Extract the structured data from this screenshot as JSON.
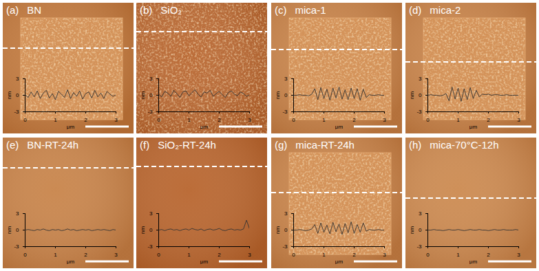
{
  "chart_data": [
    {
      "type": "line",
      "annotations": [
        "(a)"
      ],
      "title": "BN",
      "xlabel": "μm",
      "ylabel": "nm",
      "color": "#333333",
      "xlim": [
        0,
        3
      ],
      "xticks": [
        0,
        1,
        2,
        3
      ],
      "ylim": [
        -3,
        3
      ],
      "yticks": [
        -3,
        0,
        3
      ],
      "x": [
        0,
        0.1,
        0.2,
        0.3,
        0.4,
        0.5,
        0.6,
        0.7,
        0.8,
        0.9,
        1.0,
        1.1,
        1.2,
        1.3,
        1.4,
        1.5,
        1.6,
        1.7,
        1.8,
        1.9,
        2.0,
        2.1,
        2.2,
        2.3,
        2.4,
        2.5,
        2.6,
        2.7,
        2.8,
        2.9,
        3.0
      ],
      "values": [
        0.1,
        -0.4,
        0.6,
        -0.3,
        0.8,
        -0.6,
        0.4,
        0.9,
        -0.5,
        0.3,
        -0.8,
        0.7,
        0.2,
        -0.4,
        1.0,
        -0.6,
        0.5,
        -0.2,
        0.8,
        -0.7,
        0.3,
        0.6,
        -0.5,
        0.9,
        -0.3,
        0.4,
        -0.6,
        0.7,
        0.2,
        -0.2,
        0.1
      ]
    },
    {
      "type": "line",
      "annotations": [
        "(b)"
      ],
      "title": "SiO₂",
      "xlabel": "μm",
      "ylabel": "nm",
      "color": "#333333",
      "xlim": [
        0,
        3
      ],
      "xticks": [
        0,
        1,
        2,
        3
      ],
      "ylim": [
        -3,
        3
      ],
      "yticks": [
        -3,
        0,
        3
      ],
      "x": [
        0,
        0.1,
        0.2,
        0.3,
        0.4,
        0.5,
        0.6,
        0.7,
        0.8,
        0.9,
        1.0,
        1.1,
        1.2,
        1.3,
        1.4,
        1.5,
        1.6,
        1.7,
        1.8,
        1.9,
        2.0,
        2.1,
        2.2,
        2.3,
        2.4,
        2.5,
        2.6,
        2.7,
        2.8,
        2.9,
        3.0
      ],
      "values": [
        0.2,
        -0.3,
        0.7,
        0.4,
        -0.2,
        0.9,
        0.3,
        -0.4,
        0.6,
        0.8,
        -0.1,
        0.5,
        1.0,
        0.2,
        -0.3,
        0.6,
        0.4,
        0.9,
        -0.2,
        0.3,
        0.7,
        0.1,
        -0.4,
        0.5,
        0.8,
        0.2,
        -0.1,
        0.6,
        0.3,
        -0.2,
        0.1
      ]
    },
    {
      "type": "line",
      "annotations": [
        "(c)"
      ],
      "title": "mica-1",
      "xlabel": "μm",
      "ylabel": "nm",
      "color": "#333333",
      "xlim": [
        0,
        3
      ],
      "xticks": [
        0,
        1,
        2,
        3
      ],
      "ylim": [
        -3,
        3
      ],
      "yticks": [
        -3,
        0,
        3
      ],
      "x": [
        0,
        0.1,
        0.2,
        0.3,
        0.4,
        0.5,
        0.6,
        0.7,
        0.8,
        0.9,
        1.0,
        1.1,
        1.2,
        1.3,
        1.4,
        1.5,
        1.6,
        1.7,
        1.8,
        1.9,
        2.0,
        2.1,
        2.2,
        2.3,
        2.4,
        2.5,
        2.6,
        2.7,
        2.8,
        2.9,
        3.0
      ],
      "values": [
        0,
        0,
        0.1,
        0,
        0,
        -0.1,
        0.2,
        1.2,
        -0.8,
        1.4,
        -0.6,
        1.1,
        -0.9,
        1.3,
        -0.5,
        1.5,
        -0.7,
        1.0,
        -0.8,
        1.3,
        -0.6,
        1.2,
        -0.9,
        1.1,
        -0.4,
        0.1,
        0,
        0,
        0.1,
        0,
        0
      ]
    },
    {
      "type": "line",
      "annotations": [
        "(d)"
      ],
      "title": "mica-2",
      "xlabel": "μm",
      "ylabel": "nm",
      "color": "#333333",
      "xlim": [
        0,
        3
      ],
      "xticks": [
        0,
        1,
        2,
        3
      ],
      "ylim": [
        -3,
        3
      ],
      "yticks": [
        -3,
        0,
        3
      ],
      "x": [
        0,
        0.1,
        0.2,
        0.3,
        0.4,
        0.5,
        0.6,
        0.7,
        0.8,
        0.9,
        1.0,
        1.1,
        1.2,
        1.3,
        1.4,
        1.5,
        1.6,
        1.7,
        1.8,
        1.9,
        2.0,
        2.1,
        2.2,
        2.3,
        2.4,
        2.5,
        2.6,
        2.7,
        2.8,
        2.9,
        3.0
      ],
      "values": [
        0,
        0.1,
        0,
        0,
        -0.1,
        0,
        0.3,
        -1.0,
        1.5,
        -0.7,
        1.3,
        -1.1,
        1.2,
        -0.8,
        1.4,
        -0.6,
        0.9,
        -0.3,
        0.2,
        0.1,
        0.2,
        0,
        0.1,
        0.1,
        0,
        0,
        0.1,
        0,
        0,
        0,
        0
      ]
    },
    {
      "type": "line",
      "annotations": [
        "(e)"
      ],
      "title": "BN-RT-24h",
      "xlabel": "μm",
      "ylabel": "nm",
      "color": "#333333",
      "xlim": [
        0,
        3
      ],
      "xticks": [
        0,
        1,
        2,
        3
      ],
      "ylim": [
        -3,
        3
      ],
      "yticks": [
        -3,
        0,
        3
      ],
      "x": [
        0,
        0.1,
        0.2,
        0.3,
        0.4,
        0.5,
        0.6,
        0.7,
        0.8,
        0.9,
        1.0,
        1.1,
        1.2,
        1.3,
        1.4,
        1.5,
        1.6,
        1.7,
        1.8,
        1.9,
        2.0,
        2.1,
        2.2,
        2.3,
        2.4,
        2.5,
        2.6,
        2.7,
        2.8,
        2.9,
        3.0
      ],
      "values": [
        0,
        0.1,
        0,
        -0.1,
        0.1,
        0,
        0.2,
        0,
        -0.1,
        0.1,
        0,
        0.1,
        -0.1,
        0,
        0.2,
        0,
        0.1,
        -0.1,
        0,
        0.1,
        0,
        0.1,
        -0.1,
        0,
        0.1,
        0,
        0.1,
        0,
        -0.1,
        0.1,
        0
      ]
    },
    {
      "type": "line",
      "annotations": [
        "(f)"
      ],
      "title": "SiO₂-RT-24h",
      "xlabel": "μm",
      "ylabel": "nm",
      "color": "#333333",
      "xlim": [
        0,
        3
      ],
      "xticks": [
        0,
        1,
        2,
        3
      ],
      "ylim": [
        -3,
        3
      ],
      "yticks": [
        -3,
        0,
        3
      ],
      "x": [
        0,
        0.1,
        0.2,
        0.3,
        0.4,
        0.5,
        0.6,
        0.7,
        0.8,
        0.9,
        1.0,
        1.1,
        1.2,
        1.3,
        1.4,
        1.5,
        1.6,
        1.7,
        1.8,
        1.9,
        2.0,
        2.1,
        2.2,
        2.3,
        2.4,
        2.5,
        2.6,
        2.7,
        2.8,
        2.9,
        3.0
      ],
      "values": [
        0,
        0.1,
        -0.1,
        0.1,
        0.2,
        0,
        0.1,
        -0.1,
        0.1,
        0.2,
        0,
        0.3,
        0.1,
        0,
        0.2,
        -0.1,
        0.1,
        0.2,
        0,
        0.1,
        0.3,
        0,
        -0.1,
        0.1,
        0.2,
        0,
        0.1,
        0,
        0.2,
        1.8,
        0.2
      ]
    },
    {
      "type": "line",
      "annotations": [
        "(g)"
      ],
      "title": "mica-RT-24h",
      "xlabel": "μm",
      "ylabel": "nm",
      "color": "#333333",
      "xlim": [
        0,
        3
      ],
      "xticks": [
        0,
        1,
        2,
        3
      ],
      "ylim": [
        -3,
        3
      ],
      "yticks": [
        -3,
        0,
        3
      ],
      "x": [
        0,
        0.1,
        0.2,
        0.3,
        0.4,
        0.5,
        0.6,
        0.7,
        0.8,
        0.9,
        1.0,
        1.1,
        1.2,
        1.3,
        1.4,
        1.5,
        1.6,
        1.7,
        1.8,
        1.9,
        2.0,
        2.1,
        2.2,
        2.3,
        2.4,
        2.5,
        2.6,
        2.7,
        2.8,
        2.9,
        3.0
      ],
      "values": [
        0,
        0,
        0.1,
        0,
        -0.1,
        0,
        0.2,
        1.0,
        -0.6,
        1.3,
        -0.4,
        0.9,
        -0.7,
        1.4,
        -0.3,
        1.1,
        -0.8,
        1.2,
        -0.5,
        1.5,
        -0.6,
        1.0,
        -0.4,
        1.3,
        -0.2,
        0.1,
        0,
        0,
        0.1,
        0,
        0
      ]
    },
    {
      "type": "line",
      "annotations": [
        "(h)"
      ],
      "title": "mica-70°C-12h",
      "xlabel": "μm",
      "ylabel": "nm",
      "color": "#333333",
      "xlim": [
        0,
        3
      ],
      "xticks": [
        0,
        1,
        2,
        3
      ],
      "ylim": [
        -3,
        3
      ],
      "yticks": [
        -3,
        0,
        3
      ],
      "x": [
        0,
        0.1,
        0.2,
        0.3,
        0.4,
        0.5,
        0.6,
        0.7,
        0.8,
        0.9,
        1.0,
        1.1,
        1.2,
        1.3,
        1.4,
        1.5,
        1.6,
        1.7,
        1.8,
        1.9,
        2.0,
        2.1,
        2.2,
        2.3,
        2.4,
        2.5,
        2.6,
        2.7,
        2.8,
        2.9,
        3.0
      ],
      "values": [
        0,
        0,
        0.1,
        0,
        0,
        -0.1,
        0,
        0.1,
        0,
        0,
        0.1,
        0,
        -0.1,
        0,
        0.1,
        0,
        0,
        0.1,
        0,
        0,
        -0.1,
        0,
        0.1,
        0,
        0,
        0.1,
        0,
        0,
        0,
        0.1,
        0
      ]
    }
  ]
}
